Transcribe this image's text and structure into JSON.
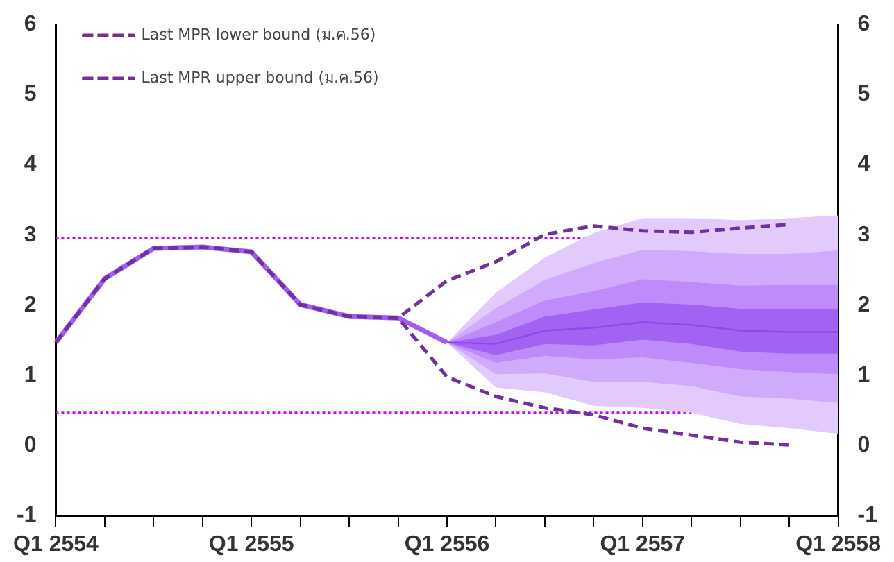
{
  "chart_data": {
    "type": "line",
    "categories": [
      "Q1 2554",
      null,
      null,
      null,
      "Q1 2555",
      null,
      null,
      null,
      "Q1 2556",
      null,
      null,
      null,
      "Q1 2557",
      null,
      null,
      null,
      "Q1 2558"
    ],
    "ylim": [
      -1,
      6
    ],
    "yticks": [
      -1,
      0,
      1,
      2,
      3,
      4,
      5,
      6
    ],
    "y2lim": [
      -1,
      6
    ],
    "y2ticks": [
      -1,
      0,
      1,
      2,
      3,
      4,
      5,
      6
    ],
    "grid": false,
    "legend": "top left",
    "marker": "none",
    "ref_lines": [
      {
        "axis": "y",
        "value": 2.96,
        "color": "#cc00ff",
        "line_style": "dotted"
      },
      {
        "axis": "y",
        "value": 0.47,
        "color": "#cc00ff",
        "line_style": "dotted"
      }
    ],
    "series": [
      {
        "color": "#e2cbfc",
        "values": [
          null,
          null,
          null,
          null,
          null,
          null,
          null,
          null,
          null,
          null,
          null,
          null,
          null,
          null,
          null,
          null,
          null
        ],
        "lower": [
          null,
          null,
          null,
          null,
          null,
          null,
          null,
          null,
          1.47,
          0.83,
          0.76,
          0.57,
          0.54,
          0.47,
          0.31,
          0.25,
          0.17
        ],
        "upper": [
          null,
          null,
          null,
          null,
          null,
          null,
          null,
          null,
          1.47,
          2.18,
          2.68,
          3.03,
          3.24,
          3.24,
          3.21,
          3.24,
          3.28
        ]
      },
      {
        "color": "#d0aafb",
        "values": [
          null,
          null,
          null,
          null,
          null,
          null,
          null,
          null,
          null,
          null,
          null,
          null,
          null,
          null,
          null,
          null,
          null
        ],
        "lower": [
          null,
          null,
          null,
          null,
          null,
          null,
          null,
          null,
          1.47,
          1.02,
          1.03,
          0.91,
          0.91,
          0.85,
          0.7,
          0.67,
          0.61
        ],
        "upper": [
          null,
          null,
          null,
          null,
          null,
          null,
          null,
          null,
          1.47,
          1.96,
          2.36,
          2.6,
          2.79,
          2.77,
          2.73,
          2.73,
          2.78
        ]
      },
      {
        "color": "#bf8bfa",
        "values": [
          null,
          null,
          null,
          null,
          null,
          null,
          null,
          null,
          null,
          null,
          null,
          null,
          null,
          null,
          null,
          null,
          null
        ],
        "lower": [
          null,
          null,
          null,
          null,
          null,
          null,
          null,
          null,
          1.47,
          1.18,
          1.28,
          1.23,
          1.26,
          1.18,
          1.09,
          1.05,
          1.02
        ],
        "upper": [
          null,
          null,
          null,
          null,
          null,
          null,
          null,
          null,
          1.47,
          1.76,
          2.07,
          2.2,
          2.37,
          2.33,
          2.28,
          2.29,
          2.29
        ]
      },
      {
        "color": "#8f47ec",
        "values": [
          null,
          null,
          null,
          null,
          null,
          null,
          null,
          null,
          1.47,
          1.45,
          1.64,
          1.68,
          1.76,
          1.72,
          1.64,
          1.62,
          1.62
        ],
        "lower": [
          null,
          null,
          null,
          null,
          null,
          null,
          null,
          null,
          1.47,
          1.29,
          1.45,
          1.43,
          1.51,
          1.45,
          1.34,
          1.31,
          1.31
        ],
        "upper": [
          null,
          null,
          null,
          null,
          null,
          null,
          null,
          null,
          1.47,
          1.58,
          1.84,
          1.94,
          2.04,
          2.01,
          1.95,
          1.95,
          1.95
        ]
      },
      {
        "color": "#a05cf4",
        "values": [
          1.47,
          2.38,
          2.81,
          2.83,
          2.76,
          2.01,
          1.84,
          1.82,
          1.47,
          null,
          null,
          null,
          null,
          null,
          null,
          null,
          null
        ]
      },
      {
        "name": "Last MPR lower bound (ม.ค.56)",
        "color": "#7030a0",
        "line_style": "dashed",
        "values": [
          1.47,
          2.38,
          2.81,
          2.83,
          2.76,
          2.01,
          1.84,
          1.82,
          0.98,
          0.7,
          0.54,
          0.44,
          0.25,
          0.15,
          0.05,
          0.01,
          null
        ]
      },
      {
        "name": "Last MPR upper bound (ม.ค.56)",
        "color": "#7030a0",
        "line_style": "dashed",
        "values": [
          1.47,
          2.38,
          2.81,
          2.83,
          2.76,
          2.01,
          1.84,
          1.82,
          2.35,
          2.62,
          3.01,
          3.13,
          3.06,
          3.04,
          3.1,
          3.15,
          null
        ]
      }
    ]
  }
}
